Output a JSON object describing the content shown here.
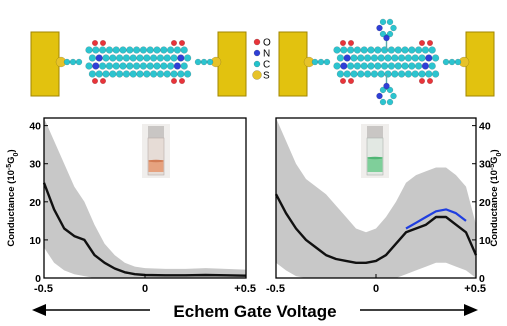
{
  "legend": {
    "items": [
      {
        "symbol": "O",
        "color": "#e8343a"
      },
      {
        "symbol": "N",
        "color": "#2f3fd6"
      },
      {
        "symbol": "C",
        "color": "#22c3cc"
      },
      {
        "symbol": "S",
        "color": "#e6c229"
      }
    ]
  },
  "colors": {
    "electrode": "#e2c20f",
    "carbon": "#2cc4cf",
    "oxygen": "#e8343a",
    "nitrogen": "#2f3fd6",
    "sulfur": "#e6c229",
    "band": "#c8c8c8",
    "trace": "#111111",
    "fit": "#1f3ee0"
  },
  "footer": {
    "label": "Echem Gate Voltage"
  },
  "chart_data": [
    {
      "type": "line",
      "panel": "left",
      "ylabel_main": "Conductance (10",
      "ylabel_sup": "-5",
      "ylabel_tail": "G",
      "ylabel_sub": "0",
      "ylabel_end": ")",
      "xlim": [
        -0.5,
        0.5
      ],
      "ylim": [
        0,
        42
      ],
      "xticks": [
        {
          "v": -0.5,
          "label": "-0.5"
        },
        {
          "v": 0,
          "label": "0"
        },
        {
          "v": 0.5,
          "label": "+0.5"
        }
      ],
      "yticks": [
        {
          "v": 0,
          "label": "0"
        },
        {
          "v": 10,
          "label": "10"
        },
        {
          "v": 20,
          "label": "20"
        },
        {
          "v": 30,
          "label": "30"
        },
        {
          "v": 40,
          "label": "40"
        }
      ],
      "x": [
        -0.5,
        -0.45,
        -0.4,
        -0.35,
        -0.3,
        -0.25,
        -0.2,
        -0.15,
        -0.1,
        -0.05,
        0.0,
        0.1,
        0.2,
        0.3,
        0.4,
        0.5
      ],
      "series": [
        {
          "name": "",
          "values": [
            25,
            18,
            13,
            11,
            10,
            6,
            4,
            2.5,
            1.5,
            1,
            0.8,
            0.7,
            0.7,
            0.8,
            0.7,
            0.6
          ]
        }
      ],
      "band_upper": [
        42,
        36,
        30,
        24,
        20,
        14,
        9,
        6,
        4,
        3,
        2.6,
        2.4,
        2.4,
        2.6,
        2.4,
        2.2
      ],
      "band_lower": [
        8,
        4,
        2,
        1,
        0.5,
        0,
        0,
        0,
        0,
        0,
        0,
        0,
        0,
        0,
        0,
        0
      ]
    },
    {
      "type": "line",
      "panel": "right",
      "ylabel_main": "Conductance (10",
      "ylabel_sup": "-5",
      "ylabel_tail": "G",
      "ylabel_sub": "0",
      "ylabel_end": ")",
      "xlim": [
        -0.5,
        0.5
      ],
      "ylim": [
        0,
        42
      ],
      "xticks": [
        {
          "v": -0.5,
          "label": "-0.5"
        },
        {
          "v": 0,
          "label": "0"
        },
        {
          "v": 0.5,
          "label": "+0.5"
        }
      ],
      "yticks": [
        {
          "v": 0,
          "label": "0"
        },
        {
          "v": 10,
          "label": "10"
        },
        {
          "v": 20,
          "label": "20"
        },
        {
          "v": 30,
          "label": "30"
        },
        {
          "v": 40,
          "label": "40"
        }
      ],
      "x": [
        -0.5,
        -0.45,
        -0.4,
        -0.35,
        -0.3,
        -0.25,
        -0.2,
        -0.15,
        -0.1,
        -0.05,
        0.0,
        0.05,
        0.1,
        0.15,
        0.2,
        0.25,
        0.3,
        0.35,
        0.4,
        0.45,
        0.5
      ],
      "series": [
        {
          "name": "",
          "values": [
            22,
            17,
            13,
            10,
            8,
            6,
            5,
            4.5,
            4,
            4,
            4.5,
            6,
            9,
            12,
            13,
            14,
            16,
            16,
            14,
            12,
            6
          ]
        },
        {
          "name": "",
          "values": [
            null,
            null,
            null,
            null,
            null,
            null,
            null,
            null,
            null,
            null,
            null,
            null,
            null,
            13,
            14.5,
            16,
            17.5,
            18,
            17,
            15,
            null
          ]
        }
      ],
      "band_upper": [
        42,
        36,
        30,
        26,
        24,
        22,
        19,
        16,
        13,
        12,
        13,
        16,
        20,
        25,
        27,
        28,
        29,
        29,
        27,
        24,
        14
      ],
      "band_lower": [
        4,
        2,
        0.5,
        0,
        0,
        0,
        0,
        0,
        0,
        0,
        0,
        0,
        0,
        1,
        2,
        3,
        4,
        4,
        3,
        2,
        0
      ]
    }
  ]
}
